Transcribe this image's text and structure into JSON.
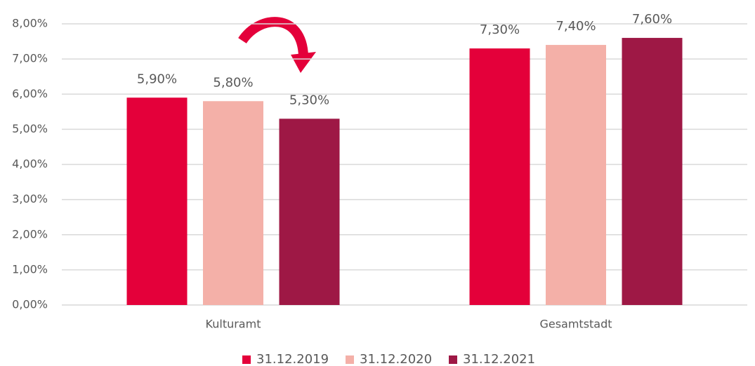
{
  "chart_data": {
    "type": "bar",
    "categories": [
      "Kulturamt",
      "Gesamtstadt"
    ],
    "series": [
      {
        "name": "31.12.2019",
        "color": "#e4003a",
        "values": [
          5.9,
          7.3
        ],
        "value_labels": [
          "5,90%",
          "7,30%"
        ]
      },
      {
        "name": "31.12.2020",
        "color": "#f4b0a8",
        "values": [
          5.8,
          7.4
        ],
        "value_labels": [
          "5,80%",
          "7,40%"
        ]
      },
      {
        "name": "31.12.2021",
        "color": "#9e1845",
        "values": [
          5.3,
          7.6
        ],
        "value_labels": [
          "5,30%",
          "7,60%"
        ]
      }
    ],
    "ylim": [
      0,
      8
    ],
    "yticks": [
      {
        "value": 0,
        "label": "0,00%"
      },
      {
        "value": 1,
        "label": "1,00%"
      },
      {
        "value": 2,
        "label": "2,00%"
      },
      {
        "value": 3,
        "label": "3,00%"
      },
      {
        "value": 4,
        "label": "4,00%"
      },
      {
        "value": 5,
        "label": "5,00%"
      },
      {
        "value": 6,
        "label": "6,00%"
      },
      {
        "value": 7,
        "label": "7,00%"
      },
      {
        "value": 8,
        "label": "8,00%"
      }
    ],
    "grid": true,
    "legend": "bottom"
  }
}
